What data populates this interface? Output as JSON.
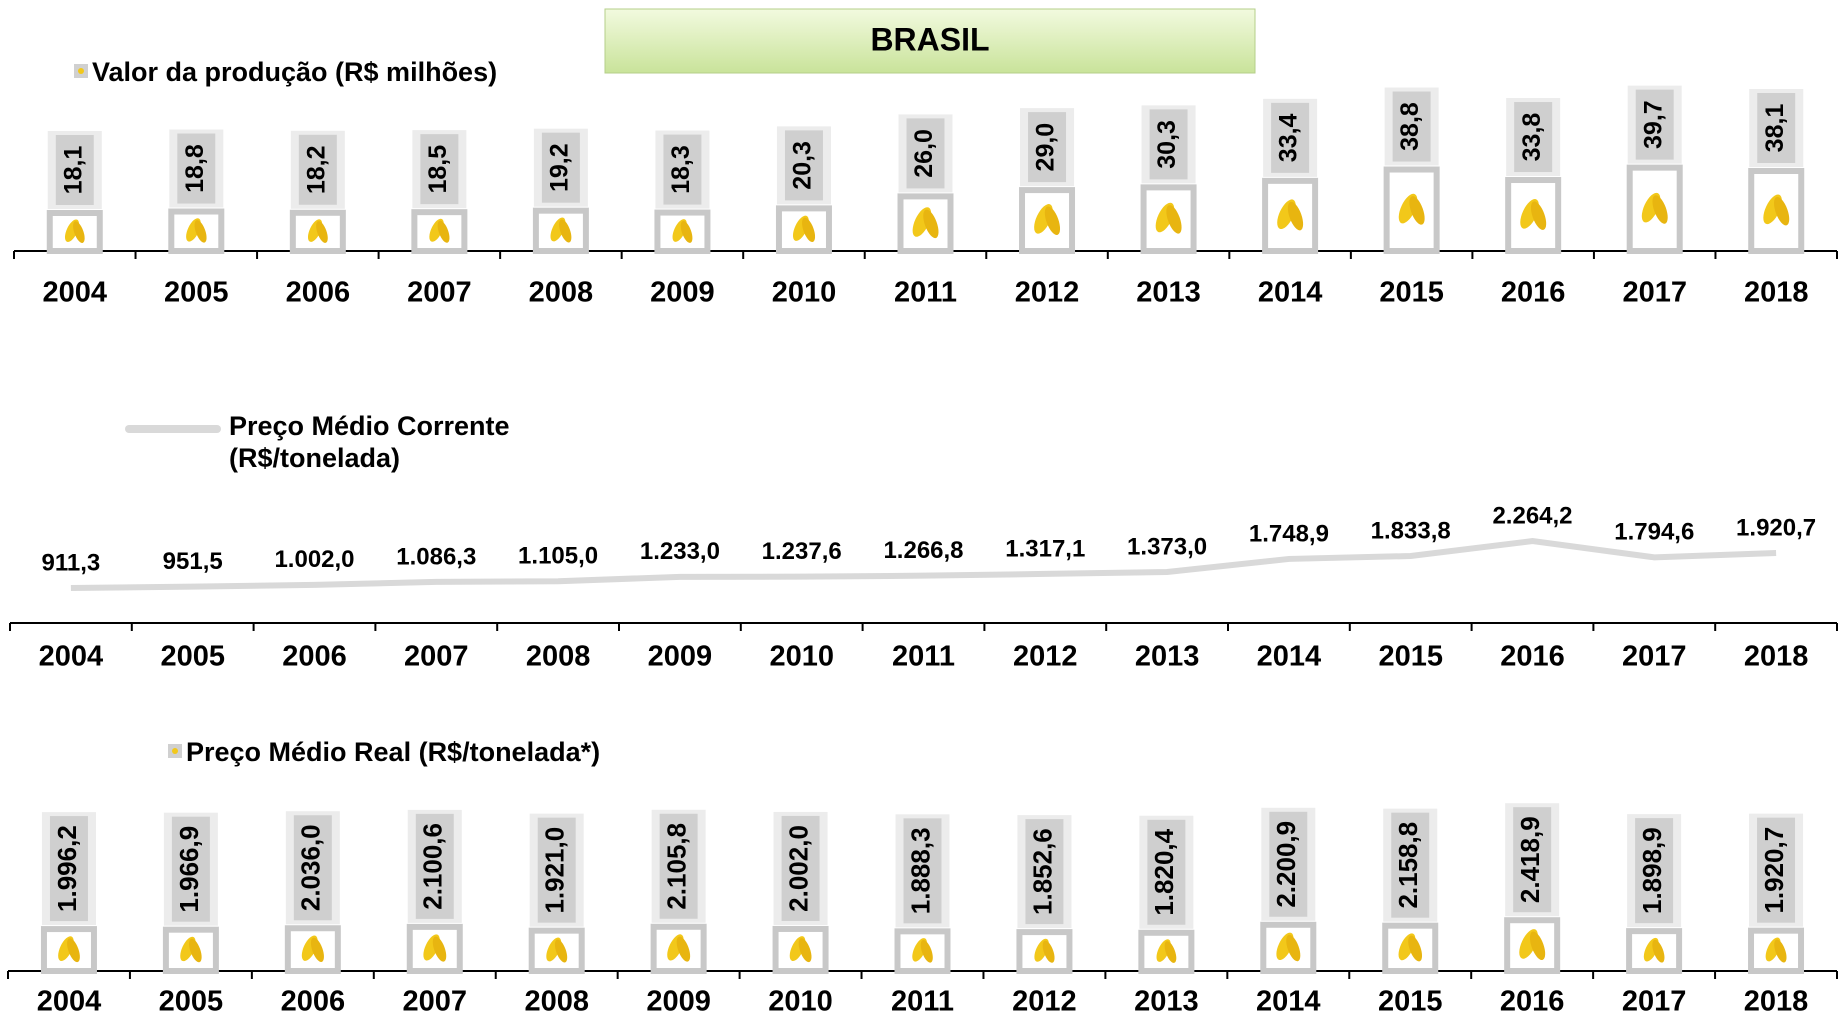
{
  "title": "BRASIL",
  "chart_data": [
    {
      "type": "bar",
      "categories": [
        "2004",
        "2005",
        "2006",
        "2007",
        "2008",
        "2009",
        "2010",
        "2011",
        "2012",
        "2013",
        "2014",
        "2015",
        "2016",
        "2017",
        "2018"
      ],
      "series": [
        {
          "name": "Valor da produção (R$ milhões)",
          "color": "#c8c8c8",
          "values": [
            18.1,
            18.8,
            18.2,
            18.5,
            19.2,
            18.3,
            20.3,
            26.0,
            29.0,
            30.3,
            33.4,
            38.8,
            33.8,
            39.7,
            38.1
          ],
          "value_labels": [
            "18,1",
            "18,8",
            "18,2",
            "18,5",
            "19,2",
            "18,3",
            "20,3",
            "26,0",
            "29,0",
            "30,3",
            "33,4",
            "38,8",
            "33,8",
            "39,7",
            "38,1"
          ]
        }
      ]
    },
    {
      "type": "line",
      "categories": [
        "2004",
        "2005",
        "2006",
        "2007",
        "2008",
        "2009",
        "2010",
        "2011",
        "2012",
        "2013",
        "2014",
        "2015",
        "2016",
        "2017",
        "2018"
      ],
      "series": [
        {
          "name": "Preço Médio Corrente (R$/tonelada)",
          "color": "#d9d9d9",
          "values": [
            911.3,
            951.5,
            1002.0,
            1086.3,
            1105.0,
            1233.0,
            1237.6,
            1266.8,
            1317.1,
            1373.0,
            1748.9,
            1833.8,
            2264.2,
            1794.6,
            1920.7
          ],
          "value_labels": [
            "911,3",
            "951,5",
            "1.002,0",
            "1.086,3",
            "1.105,0",
            "1.233,0",
            "1.237,6",
            "1.266,8",
            "1.317,1",
            "1.373,0",
            "1.748,9",
            "1.833,8",
            "2.264,2",
            "1.794,6",
            "1.920,7"
          ]
        }
      ]
    },
    {
      "type": "bar",
      "categories": [
        "2004",
        "2005",
        "2006",
        "2007",
        "2008",
        "2009",
        "2010",
        "2011",
        "2012",
        "2013",
        "2014",
        "2015",
        "2016",
        "2017",
        "2018"
      ],
      "series": [
        {
          "name": "Preço Médio Real (R$/tonelada*)",
          "color": "#c8c8c8",
          "values": [
            1996.2,
            1966.9,
            2036.0,
            2100.6,
            1921.0,
            2105.8,
            2002.0,
            1888.3,
            1852.6,
            1820.4,
            2200.9,
            2158.8,
            2418.9,
            1898.9,
            1920.7
          ],
          "value_labels": [
            "1.996,2",
            "1.966,9",
            "2.036,0",
            "2.100,6",
            "1.921,0",
            "2.105,8",
            "2.002,0",
            "1.888,3",
            "1.852,6",
            "1.820,4",
            "2.200,9",
            "2.158,8",
            "2.418,9",
            "1.898,9",
            "1.920,7"
          ]
        }
      ]
    }
  ]
}
